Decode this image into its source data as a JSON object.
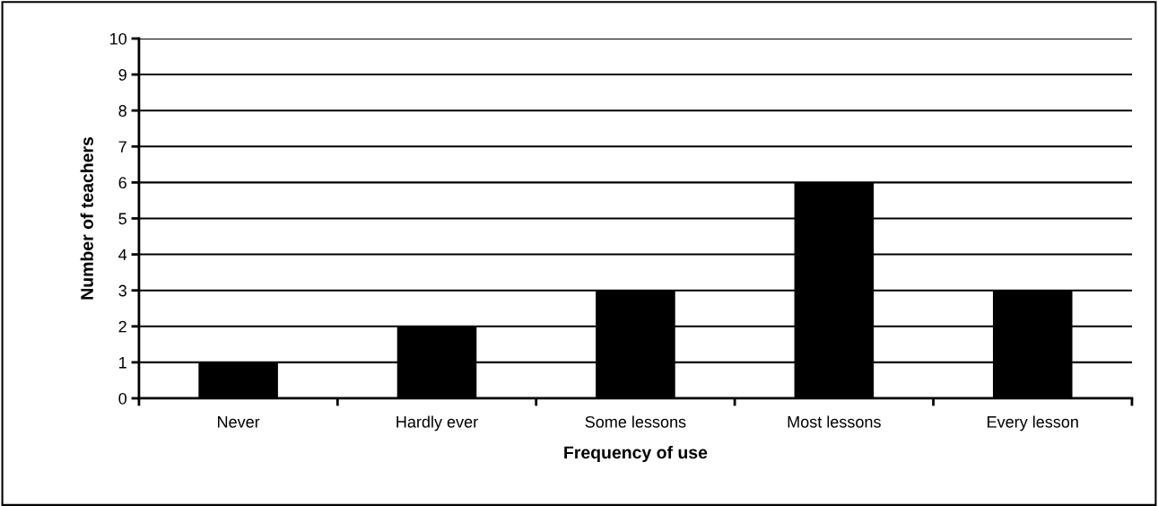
{
  "chart_data": {
    "type": "bar",
    "xlabel": "Frequency of use",
    "ylabel": "Number of teachers",
    "categories": [
      "Never",
      "Hardly ever",
      "Some lessons",
      "Most lessons",
      "Every lesson"
    ],
    "values": [
      1,
      2,
      3,
      6,
      3
    ],
    "color": "#000000",
    "ylim": [
      0,
      10
    ],
    "yticks": [
      0,
      1,
      2,
      3,
      4,
      5,
      6,
      7,
      8,
      9,
      10
    ],
    "grid": "y",
    "legend": false
  }
}
